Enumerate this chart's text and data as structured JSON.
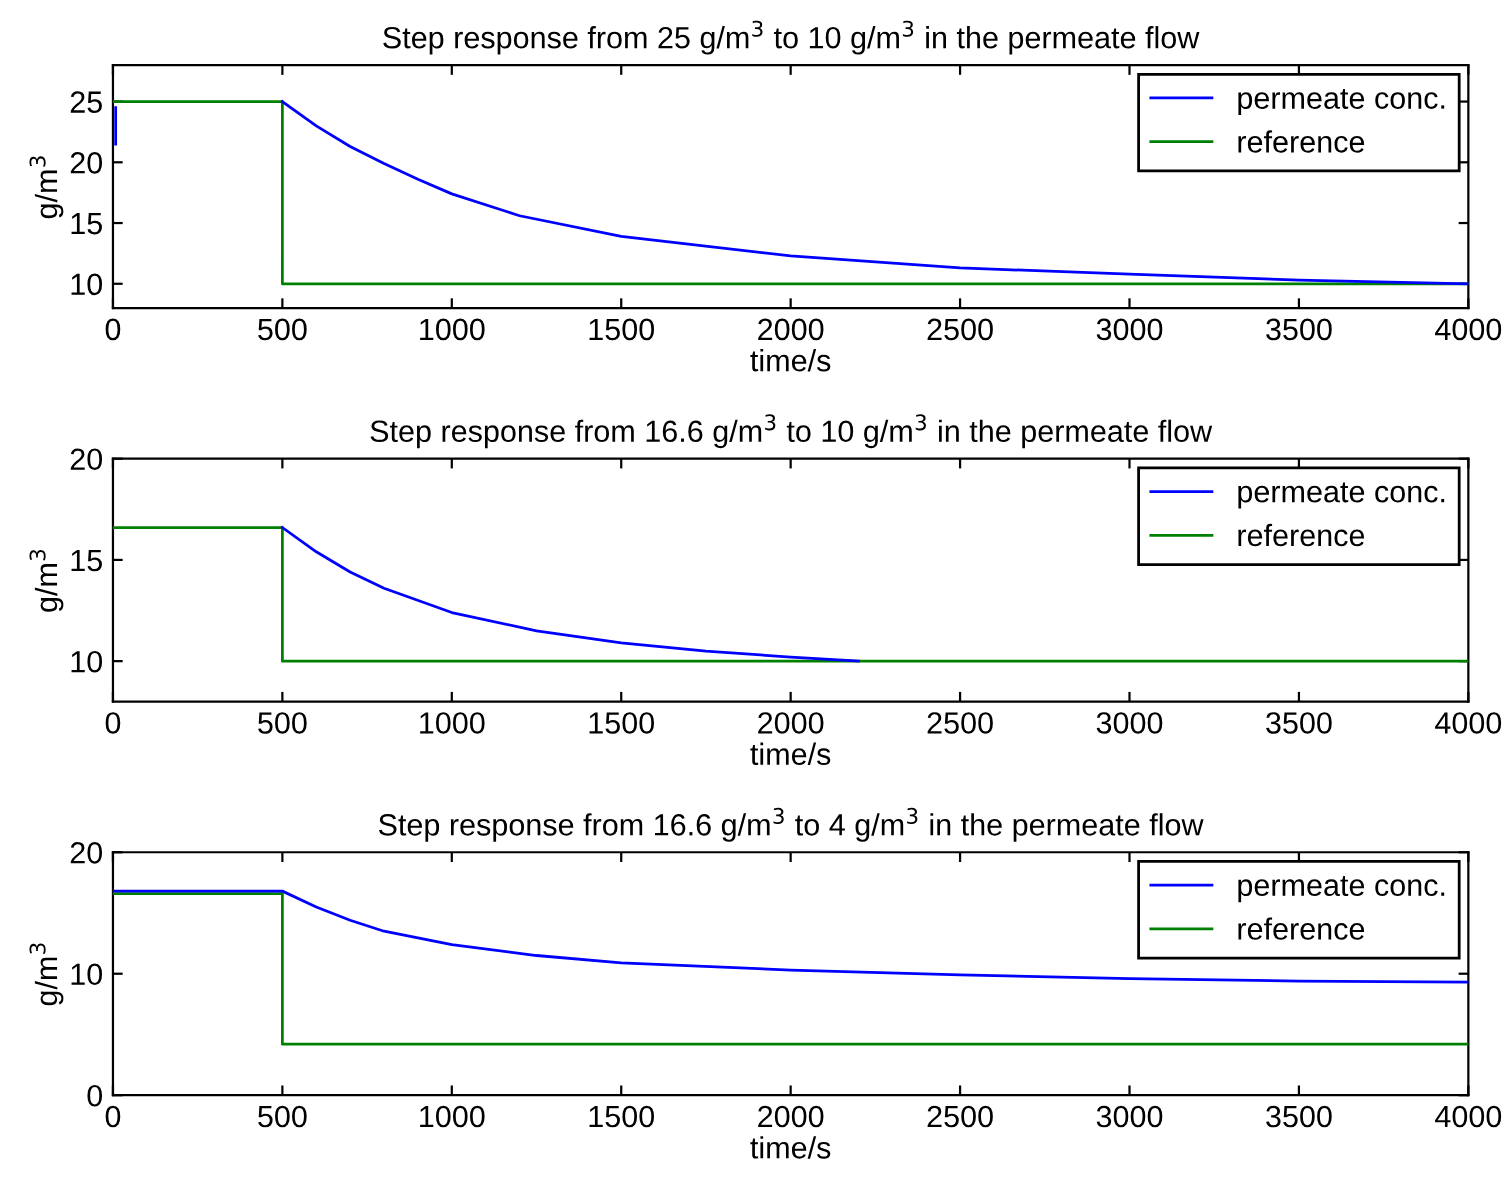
{
  "chart_data": [
    {
      "type": "line",
      "title": "Step response from 25 g/m$^{3}$ to 10 g/m$^{3}$ in the permeate flow",
      "xlabel": "time/s",
      "ylabel": "g/m$^{3}$",
      "xlim": [
        0,
        4000
      ],
      "xticks": [
        0,
        500,
        1000,
        1500,
        2000,
        2500,
        3000,
        3500,
        4000
      ],
      "ylim": [
        8,
        28
      ],
      "yticks": [
        10,
        15,
        20,
        25
      ],
      "grid": false,
      "legend": "top right",
      "series": [
        {
          "name": "permeate conc.",
          "color": "#0000ff",
          "x": [
            8,
            8,
            20,
            500,
            600,
            700,
            800,
            900,
            1000,
            1200,
            1500,
            2000,
            2500,
            3000,
            3500,
            4000
          ],
          "values": [
            21.5,
            24.5,
            null,
            25,
            23.0,
            21.3,
            19.9,
            18.6,
            17.4,
            15.6,
            13.9,
            12.3,
            11.3,
            10.8,
            10.3,
            10.0
          ]
        },
        {
          "name": "reference",
          "color": "#008000",
          "x": [
            0,
            500,
            500,
            4000
          ],
          "values": [
            25,
            25,
            10,
            10
          ]
        }
      ]
    },
    {
      "type": "line",
      "title": "Step response from 16.6 g/m$^{3}$ to 10 g/m$^{3}$ in the permeate flow",
      "xlabel": "time/s",
      "ylabel": "g/m$^{3}$",
      "xlim": [
        0,
        4000
      ],
      "xticks": [
        0,
        500,
        1000,
        1500,
        2000,
        2500,
        3000,
        3500,
        4000
      ],
      "ylim": [
        8,
        20
      ],
      "yticks": [
        10,
        15,
        20
      ],
      "grid": false,
      "legend": "top right",
      "series": [
        {
          "name": "permeate conc.",
          "color": "#0000ff",
          "x": [
            500,
            600,
            700,
            800,
            1000,
            1250,
            1500,
            1750,
            2000,
            2200
          ],
          "values": [
            16.6,
            15.4,
            14.4,
            13.6,
            12.4,
            11.5,
            10.9,
            10.5,
            10.2,
            10.0
          ]
        },
        {
          "name": "reference",
          "color": "#008000",
          "x": [
            0,
            500,
            500,
            4000
          ],
          "values": [
            16.6,
            16.6,
            10,
            10
          ]
        }
      ]
    },
    {
      "type": "line",
      "title": "Step response from 16.6 g/m$^{3}$ to 4 g/m$^{3}$ in the permeate flow",
      "xlabel": "time/s",
      "ylabel": "g/m$^{3}$",
      "xlim": [
        0,
        4000
      ],
      "xticks": [
        0,
        500,
        1000,
        1500,
        2000,
        2500,
        3000,
        3500,
        4000
      ],
      "ylim": [
        0,
        20
      ],
      "yticks": [
        0,
        10,
        20
      ],
      "grid": false,
      "legend": "top right",
      "series": [
        {
          "name": "permeate conc.",
          "color": "#0000ff",
          "x": [
            0,
            500,
            600,
            700,
            800,
            1000,
            1250,
            1500,
            2000,
            2500,
            3000,
            3500,
            4000
          ],
          "values": [
            16.8,
            16.8,
            15.5,
            14.4,
            13.5,
            12.4,
            11.5,
            10.9,
            10.3,
            9.9,
            9.6,
            9.4,
            9.3
          ]
        },
        {
          "name": "reference",
          "color": "#008000",
          "x": [
            0,
            500,
            500,
            4000
          ],
          "values": [
            16.6,
            16.6,
            4.2,
            4.2
          ]
        }
      ]
    }
  ]
}
